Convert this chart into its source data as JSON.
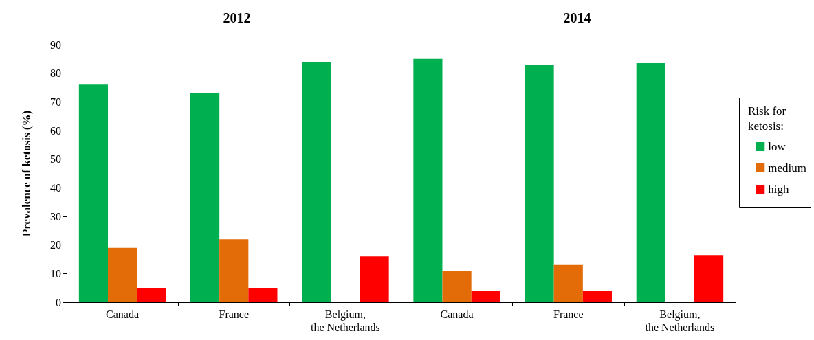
{
  "chart_data": {
    "type": "bar",
    "ylabel": "Prevalence of ketosis (%)",
    "annotations": [
      "2012",
      "2014"
    ],
    "categories": [
      "Canada",
      "France",
      "Belgium, the Netherlands",
      "Canada",
      "France",
      "Belgium, the Netherlands"
    ],
    "series": [
      {
        "name": "low",
        "color": "#00b050",
        "values": [
          76,
          73,
          84,
          85,
          83,
          83.5
        ]
      },
      {
        "name": "medium",
        "color": "#e36c09",
        "values": [
          19,
          22,
          null,
          11,
          13,
          null
        ]
      },
      {
        "name": "high",
        "color": "#ff0000",
        "values": [
          5,
          5,
          16,
          4,
          4,
          16.5
        ]
      }
    ],
    "legend_title": "Risk for ketosis:",
    "legend": "right",
    "ylim": [
      0,
      90
    ],
    "yticks": [
      0,
      10,
      20,
      30,
      40,
      50,
      60,
      70,
      80,
      90
    ],
    "grid": false
  }
}
